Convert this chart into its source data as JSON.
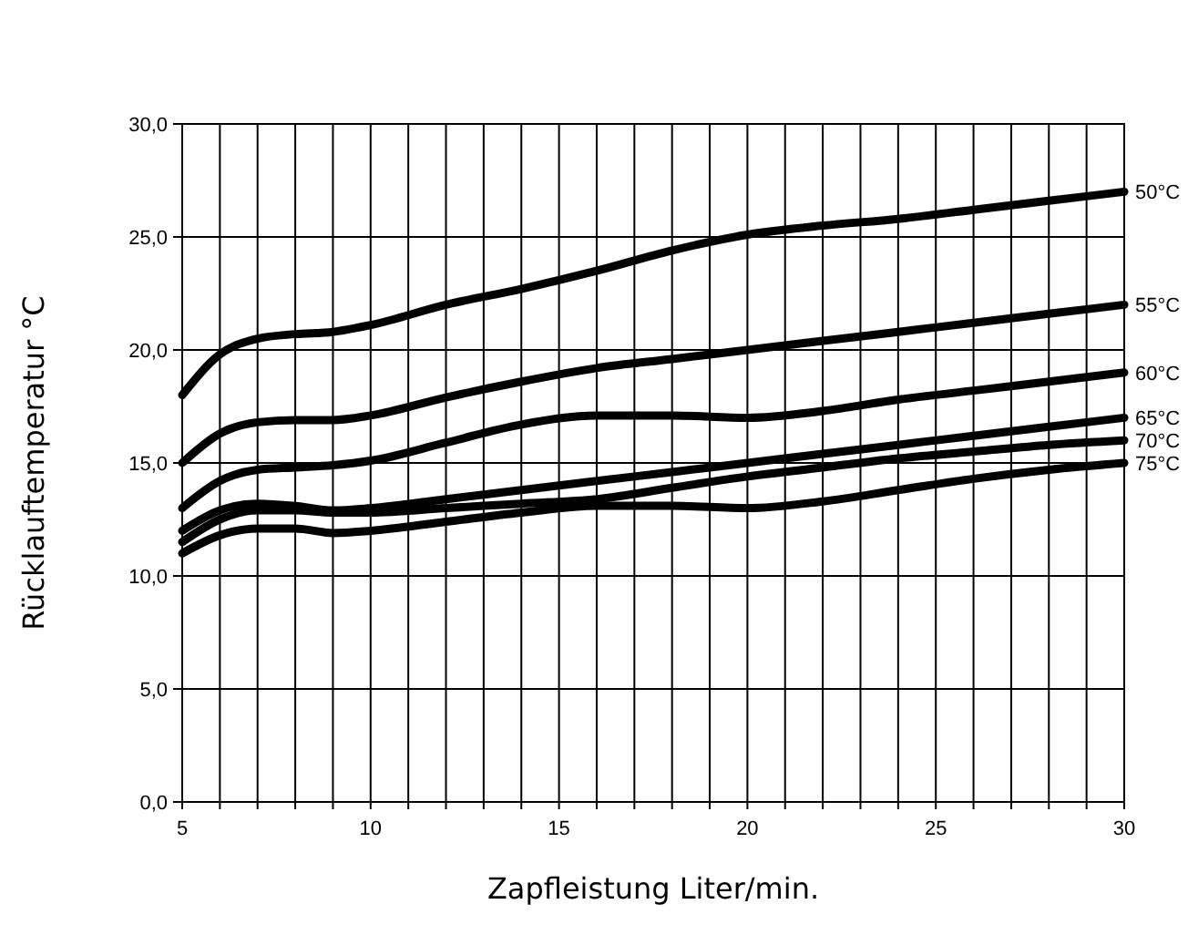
{
  "chart_data": {
    "type": "line",
    "xlabel": "Zapfleistung Liter/min.",
    "ylabel": "Rücklauftemperatur °C",
    "x": [
      5,
      6,
      7,
      8,
      9,
      10,
      12,
      14,
      16,
      18,
      20,
      22,
      24,
      26,
      28,
      30
    ],
    "series": [
      {
        "name": "50°C",
        "color": "#000000",
        "values": [
          18,
          19.8,
          20.5,
          20.7,
          20.8,
          21.1,
          22,
          22.7,
          23.5,
          24.4,
          25.1,
          25.5,
          25.8,
          26.2,
          26.6,
          27
        ]
      },
      {
        "name": "55°C",
        "color": "#000000",
        "values": [
          15,
          16.3,
          16.8,
          16.9,
          16.9,
          17.1,
          17.9,
          18.6,
          19.2,
          19.6,
          20,
          20.4,
          20.8,
          21.2,
          21.6,
          22
        ]
      },
      {
        "name": "60°C",
        "color": "#000000",
        "values": [
          13,
          14.2,
          14.7,
          14.8,
          14.9,
          15.1,
          15.9,
          16.7,
          17.1,
          17.1,
          17,
          17.3,
          17.8,
          18.2,
          18.6,
          19
        ]
      },
      {
        "name": "65°C",
        "color": "#000000",
        "values": [
          12,
          12.9,
          13.2,
          13.1,
          12.9,
          13,
          13.4,
          13.8,
          14.2,
          14.6,
          15,
          15.4,
          15.8,
          16.2,
          16.6,
          17
        ]
      },
      {
        "name": "70°C",
        "color": "#000000",
        "values": [
          11.5,
          12.5,
          12.9,
          12.9,
          12.8,
          12.8,
          13,
          13.2,
          13.4,
          13.9,
          14.4,
          14.8,
          15.2,
          15.5,
          15.8,
          16
        ]
      },
      {
        "name": "75°C",
        "color": "#000000",
        "values": [
          11,
          11.8,
          12.1,
          12.1,
          11.9,
          12,
          12.4,
          12.8,
          13.1,
          13.1,
          13,
          13.3,
          13.8,
          14.3,
          14.7,
          15
        ]
      }
    ],
    "xlim": [
      5,
      30
    ],
    "xticks": [
      5,
      {
        "value": 6,
        "label": null
      },
      {
        "value": 7,
        "label": null
      },
      {
        "value": 8,
        "label": null
      },
      {
        "value": 9,
        "label": null
      },
      10,
      {
        "value": 11,
        "label": null
      },
      {
        "value": 12,
        "label": null
      },
      {
        "value": 13,
        "label": null
      },
      {
        "value": 14,
        "label": null
      },
      15,
      {
        "value": 16,
        "label": null
      },
      {
        "value": 17,
        "label": null
      },
      {
        "value": 18,
        "label": null
      },
      {
        "value": 19,
        "label": null
      },
      20,
      {
        "value": 21,
        "label": null
      },
      {
        "value": 22,
        "label": null
      },
      {
        "value": 23,
        "label": null
      },
      {
        "value": 24,
        "label": null
      },
      25,
      {
        "value": 26,
        "label": null
      },
      {
        "value": 27,
        "label": null
      },
      {
        "value": 28,
        "label": null
      },
      {
        "value": 29,
        "label": null
      },
      30
    ],
    "ylim": [
      0,
      30
    ],
    "yticks": [
      {
        "value": 0,
        "label": "0,0"
      },
      {
        "value": 5,
        "label": "5,0"
      },
      {
        "value": 10,
        "label": "10,0"
      },
      {
        "value": 15,
        "label": "15,0"
      },
      {
        "value": 20,
        "label": "20,0"
      },
      {
        "value": 25,
        "label": "25,0"
      },
      {
        "value": 30,
        "label": "30,0"
      }
    ],
    "grid": true,
    "legend": false,
    "marker": "none",
    "line_style": "solid"
  }
}
